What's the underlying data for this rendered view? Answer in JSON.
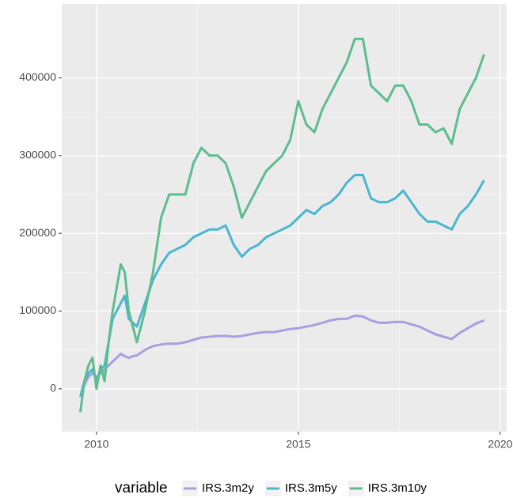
{
  "chart_data": {
    "type": "line",
    "x": [
      2009.6,
      2009.7,
      2009.8,
      2009.9,
      2010.0,
      2010.1,
      2010.2,
      2010.3,
      2010.4,
      2010.5,
      2010.6,
      2010.7,
      2010.8,
      2010.9,
      2011.0,
      2011.2,
      2011.4,
      2011.6,
      2011.8,
      2012.0,
      2012.2,
      2012.4,
      2012.6,
      2012.8,
      2013.0,
      2013.2,
      2013.4,
      2013.6,
      2013.8,
      2014.0,
      2014.2,
      2014.4,
      2014.6,
      2014.8,
      2015.0,
      2015.2,
      2015.4,
      2015.6,
      2015.8,
      2016.0,
      2016.2,
      2016.4,
      2016.6,
      2016.8,
      2017.0,
      2017.2,
      2017.4,
      2017.6,
      2017.8,
      2018.0,
      2018.2,
      2018.4,
      2018.6,
      2018.8,
      2019.0,
      2019.2,
      2019.4,
      2019.6
    ],
    "series": [
      {
        "name": "IRS.3m2y",
        "color": "#a99ee0",
        "values": [
          -10000,
          5000,
          15000,
          20000,
          15000,
          20000,
          25000,
          30000,
          35000,
          40000,
          45000,
          42000,
          40000,
          42000,
          43000,
          50000,
          55000,
          57000,
          58000,
          58000,
          60000,
          63000,
          66000,
          67000,
          68000,
          68000,
          67000,
          68000,
          70000,
          72000,
          73000,
          73000,
          75000,
          77000,
          78000,
          80000,
          82000,
          85000,
          88000,
          90000,
          90000,
          94000,
          93000,
          88000,
          85000,
          85000,
          86000,
          86000,
          83000,
          80000,
          75000,
          70000,
          67000,
          64000,
          72000,
          78000,
          84000,
          88000
        ]
      },
      {
        "name": "IRS.3m5y",
        "color": "#49b6cf",
        "values": [
          -10000,
          10000,
          20000,
          25000,
          10000,
          25000,
          30000,
          60000,
          90000,
          100000,
          110000,
          120000,
          90000,
          85000,
          80000,
          110000,
          140000,
          160000,
          175000,
          180000,
          185000,
          195000,
          200000,
          205000,
          205000,
          210000,
          185000,
          170000,
          180000,
          185000,
          195000,
          200000,
          205000,
          210000,
          220000,
          230000,
          225000,
          235000,
          240000,
          250000,
          265000,
          275000,
          275000,
          245000,
          240000,
          240000,
          245000,
          255000,
          240000,
          225000,
          215000,
          215000,
          210000,
          205000,
          225000,
          235000,
          250000,
          268000
        ]
      },
      {
        "name": "IRS.3m10y",
        "color": "#5dbd8f",
        "values": [
          -30000,
          10000,
          30000,
          40000,
          0,
          30000,
          10000,
          60000,
          100000,
          130000,
          160000,
          150000,
          100000,
          80000,
          60000,
          100000,
          150000,
          220000,
          250000,
          250000,
          250000,
          290000,
          310000,
          300000,
          300000,
          290000,
          260000,
          220000,
          240000,
          260000,
          280000,
          290000,
          300000,
          320000,
          370000,
          340000,
          330000,
          360000,
          380000,
          400000,
          420000,
          450000,
          450000,
          390000,
          380000,
          370000,
          390000,
          390000,
          370000,
          340000,
          340000,
          330000,
          335000,
          315000,
          360000,
          380000,
          400000,
          430000
        ]
      }
    ],
    "xlim": [
      2009.14,
      2020.16
    ],
    "xticks": [
      2010,
      2015,
      2020
    ],
    "ylim": [
      -55000,
      495000
    ],
    "yticks": [
      0,
      100000,
      200000,
      300000,
      400000
    ],
    "grid": true,
    "legend_title": "variable",
    "legend_position": "bottom"
  }
}
